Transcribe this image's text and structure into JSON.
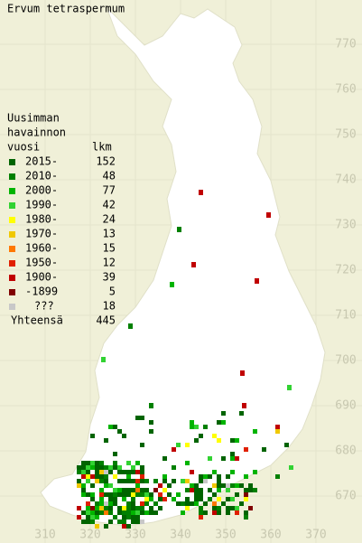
{
  "title": "Ervum tetraspermum",
  "legend": {
    "heading": [
      "Uusimman",
      "havainnon",
      "vuosi"
    ],
    "count_heading": "lkm",
    "rows": [
      {
        "label": "2015-",
        "count": 152,
        "color": "#006400"
      },
      {
        "label": "2010-",
        "count": 48,
        "color": "#008000"
      },
      {
        "label": "2000-",
        "count": 77,
        "color": "#00b400"
      },
      {
        "label": "1990-",
        "count": 42,
        "color": "#32d232"
      },
      {
        "label": "1980-",
        "count": 24,
        "color": "#ffff00"
      },
      {
        "label": "1970-",
        "count": 13,
        "color": "#f0c800"
      },
      {
        "label": "1960-",
        "count": 15,
        "color": "#ff7800"
      },
      {
        "label": "1950-",
        "count": 12,
        "color": "#e02000"
      },
      {
        "label": "1900-",
        "count": 39,
        "color": "#c00000"
      },
      {
        "label": "-1899",
        "count": 5,
        "color": "#800000"
      },
      {
        "label": "???",
        "count": 18,
        "color": "#c8c8c8"
      }
    ],
    "total_label": "Yhteensä",
    "total": 445
  },
  "x_axis": {
    "labels": [
      310,
      320,
      330,
      340,
      350,
      360,
      370
    ]
  },
  "y_axis": {
    "labels": [
      670,
      680,
      690,
      700,
      710,
      720,
      730,
      740,
      750,
      760,
      770
    ]
  }
}
